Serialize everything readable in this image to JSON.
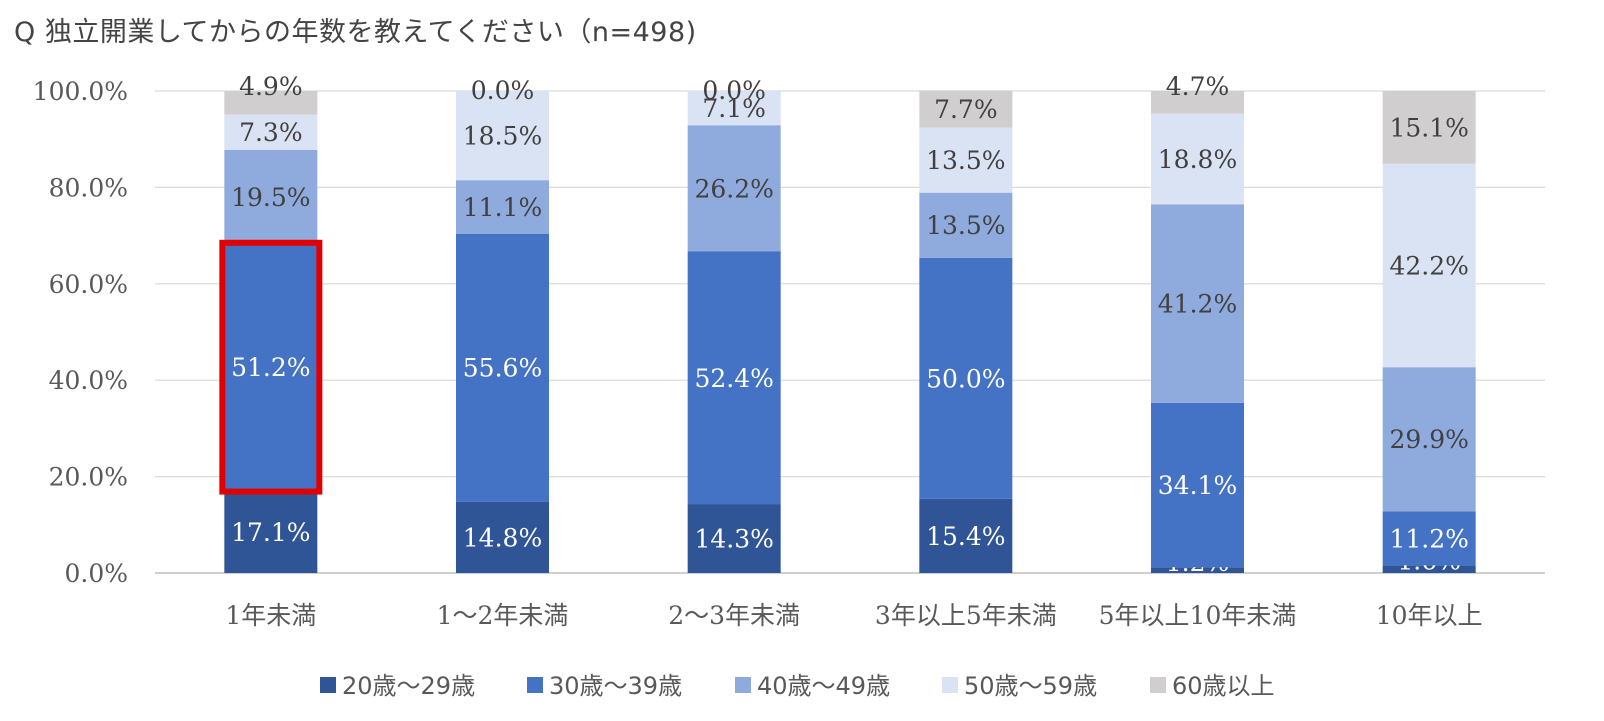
{
  "title": "Q 独立開業してからの年数を教えてください（n=498)",
  "chart_data": {
    "type": "bar",
    "stacked": true,
    "percent": true,
    "categories": [
      "1年未満",
      "1〜2年未満",
      "2〜3年未満",
      "3年以上5年未満",
      "5年以上10年未満",
      "10年以上"
    ],
    "series": [
      {
        "name": "20歳〜29歳",
        "color": "#2F5597",
        "label_color": "#ffffff",
        "values": [
          17.1,
          14.8,
          14.3,
          15.4,
          1.2,
          1.6
        ],
        "labels": [
          "17.1%",
          "14.8%",
          "14.3%",
          "15.4%",
          "1.2%",
          "1.6%"
        ]
      },
      {
        "name": "30歳〜39歳",
        "color": "#4472C4",
        "label_color": "#ffffff",
        "values": [
          51.2,
          55.6,
          52.4,
          50.0,
          34.1,
          11.2
        ],
        "labels": [
          "51.2%",
          "55.6%",
          "52.4%",
          "50.0%",
          "34.1%",
          "11.2%"
        ]
      },
      {
        "name": "40歳〜49歳",
        "color": "#8FAADC",
        "label_color": "#404040",
        "values": [
          19.5,
          11.1,
          26.2,
          13.5,
          41.2,
          29.9
        ],
        "labels": [
          "19.5%",
          "11.1%",
          "26.2%",
          "13.5%",
          "41.2%",
          "29.9%"
        ]
      },
      {
        "name": "50歳〜59歳",
        "color": "#DAE3F3",
        "label_color": "#404040",
        "values": [
          7.3,
          18.5,
          7.1,
          13.5,
          18.8,
          42.2
        ],
        "labels": [
          "7.3%",
          "18.5%",
          "7.1%",
          "13.5%",
          "18.8%",
          "42.2%"
        ]
      },
      {
        "name": "60歳以上",
        "color": "#D0CECE",
        "label_color": "#404040",
        "values": [
          4.9,
          0.0,
          0.0,
          7.7,
          4.7,
          15.1
        ],
        "labels": [
          "4.9%",
          "0.0%",
          "0.0%",
          "7.7%",
          "4.7%",
          "15.1%"
        ]
      }
    ],
    "yticks": [
      "0.0%",
      "20.0%",
      "40.0%",
      "60.0%",
      "80.0%",
      "100.0%"
    ],
    "ylim": [
      0,
      100
    ],
    "grid": true,
    "legend_position": "bottom",
    "highlight": {
      "category_index": 0,
      "series_index": 1,
      "color": "#E00000"
    }
  }
}
